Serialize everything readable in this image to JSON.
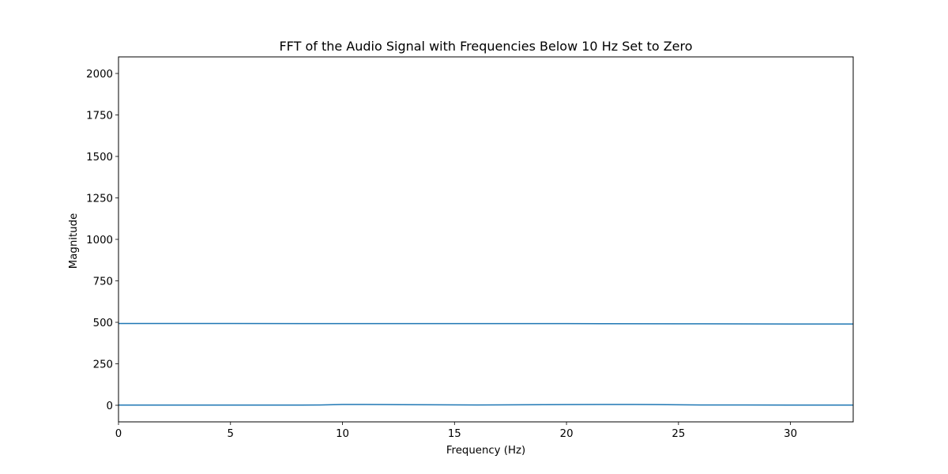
{
  "chart_data": {
    "type": "line",
    "title": "FFT of the Audio Signal with Frequencies Below 10 Hz Set to Zero",
    "xlabel": "Frequency (Hz)",
    "ylabel": "Magnitude",
    "xlim": [
      0,
      32.8
    ],
    "ylim": [
      -100,
      2100
    ],
    "xticks": [
      0,
      5,
      10,
      15,
      20,
      25,
      30
    ],
    "yticks": [
      0,
      250,
      500,
      750,
      1000,
      1250,
      1500,
      1750,
      2000
    ],
    "grid": false,
    "series": [
      {
        "color": "#1f77b4",
        "x": [
          0,
          5,
          10,
          15,
          20,
          25,
          30,
          32.8
        ],
        "y": [
          493,
          493,
          492,
          492,
          492,
          491,
          490,
          490
        ]
      },
      {
        "color": "#1f77b4",
        "x": [
          0,
          2,
          4,
          6,
          8,
          9,
          10,
          11,
          12,
          14,
          16,
          18,
          20,
          22,
          23,
          24,
          25,
          26,
          28,
          30,
          32.8
        ],
        "y": [
          1,
          1,
          1,
          1,
          1,
          2,
          5,
          5,
          4,
          3,
          2,
          3,
          4,
          5,
          5,
          4,
          3,
          2,
          2,
          1,
          1
        ]
      }
    ]
  }
}
